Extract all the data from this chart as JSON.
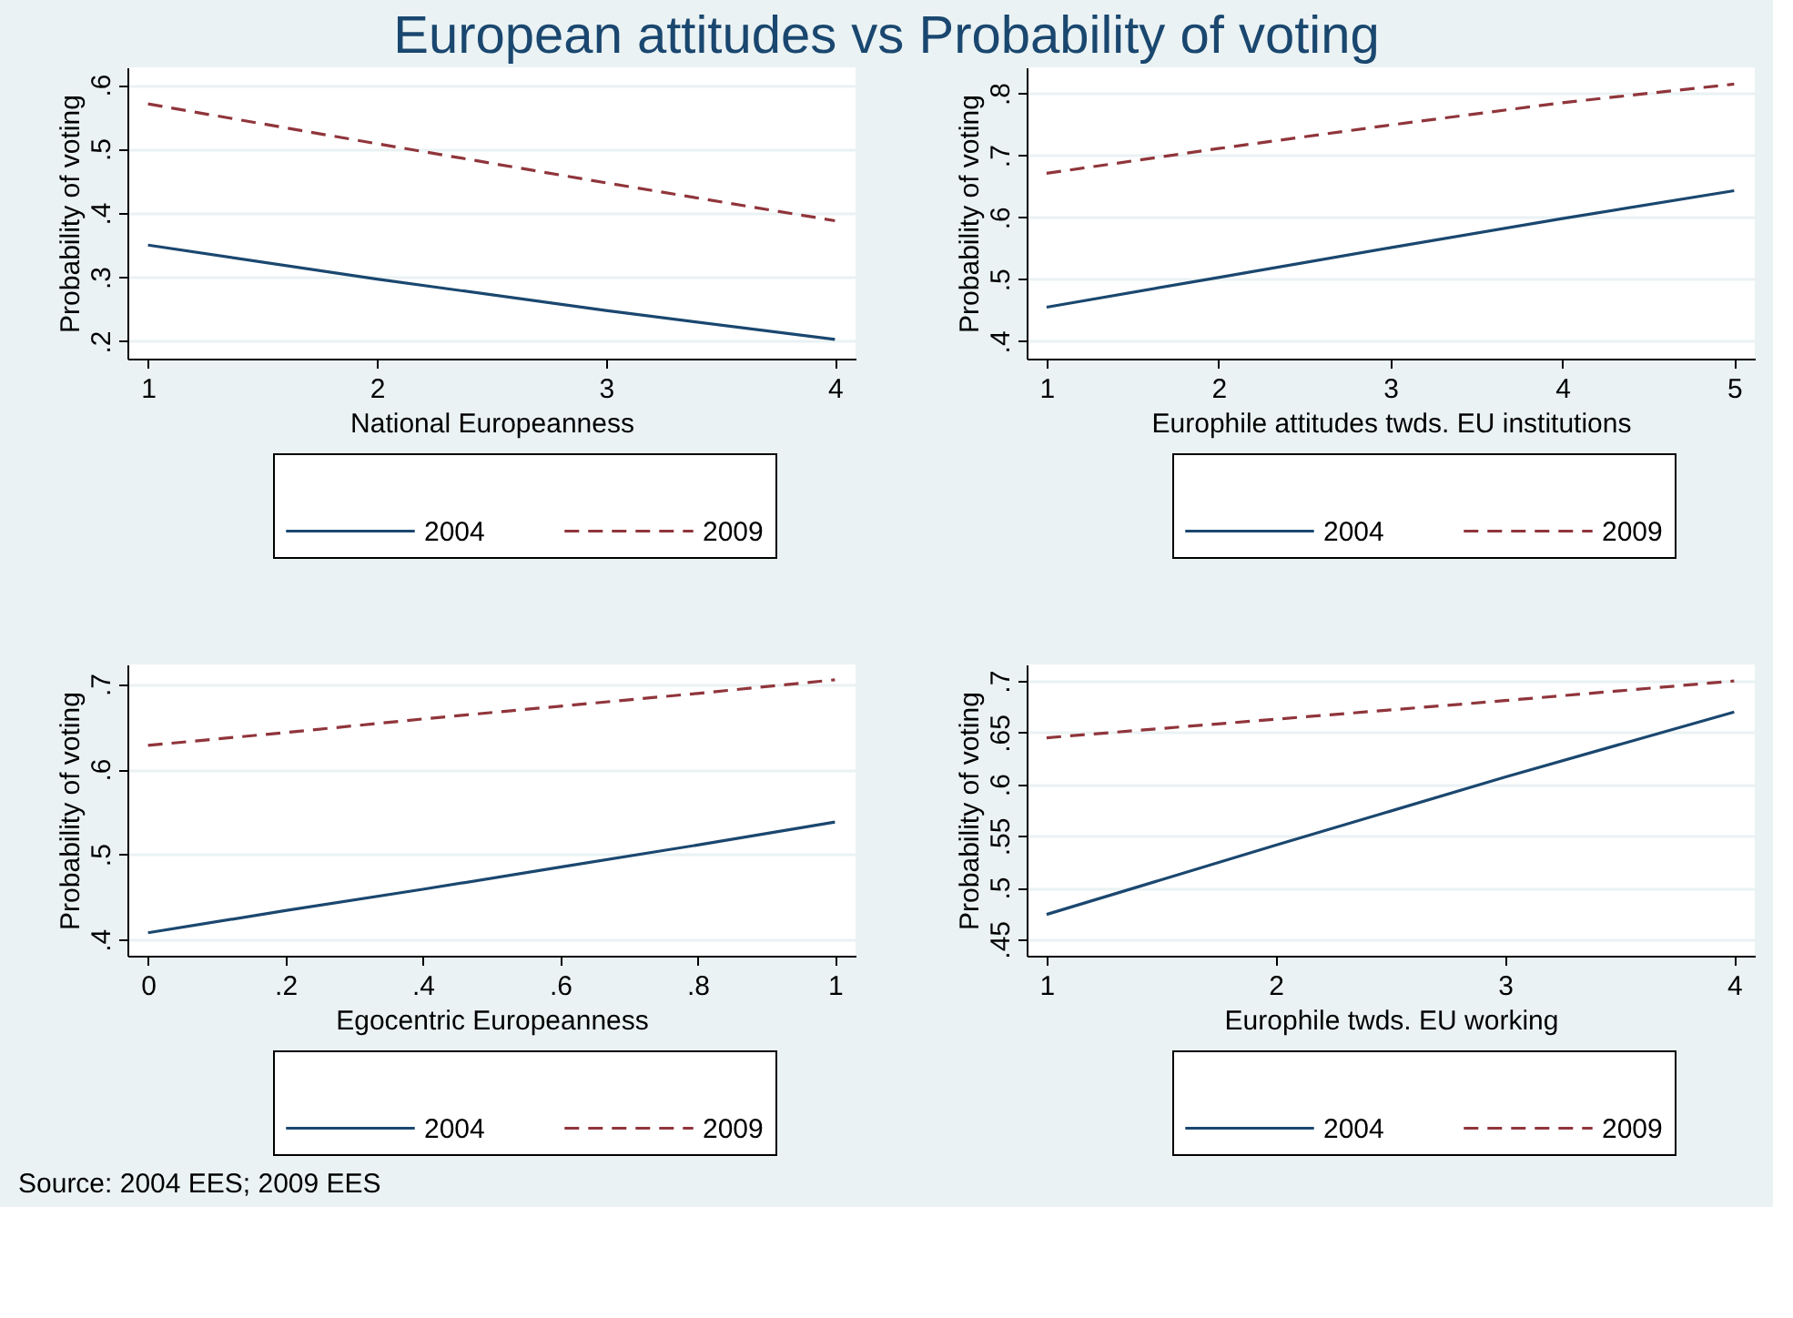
{
  "chart_data": [
    {
      "type": "line",
      "title": "European attitudes vs Probability of voting",
      "xlabel": "National Europeanness",
      "ylabel": "Probability of voting",
      "x": [
        1,
        2,
        3,
        4
      ],
      "series": [
        {
          "name": "2004",
          "color": "#1a476f",
          "line_style": "solid",
          "values": [
            0.35,
            0.297,
            0.248,
            0.203
          ]
        },
        {
          "name": "2009",
          "color": "#90353b",
          "line_style": "dashed",
          "values": [
            0.57,
            0.508,
            0.447,
            0.388
          ]
        }
      ],
      "xlim": [
        0.91,
        4.09
      ],
      "xticks": [
        1,
        2,
        3,
        4
      ],
      "ylim": [
        0.173,
        0.627
      ],
      "yticks": [
        {
          "value": 0.2,
          "label": ".2"
        },
        {
          "value": 0.3,
          "label": ".3"
        },
        {
          "value": 0.4,
          "label": ".4"
        },
        {
          "value": 0.5,
          "label": ".5"
        },
        {
          "value": 0.6,
          "label": ".6"
        }
      ],
      "grid": "y",
      "legend": "bottom",
      "marker": "none"
    },
    {
      "type": "line",
      "xlabel": "Europhile attitudes twds. EU institutions",
      "ylabel": "Probability of voting",
      "x": [
        1,
        2,
        3,
        4,
        5
      ],
      "series": [
        {
          "name": "2004",
          "color": "#1a476f",
          "line_style": "solid",
          "values": [
            0.455,
            0.503,
            0.551,
            0.598,
            0.643
          ]
        },
        {
          "name": "2009",
          "color": "#90353b",
          "line_style": "dashed",
          "values": [
            0.671,
            0.711,
            0.749,
            0.785,
            0.815
          ]
        }
      ],
      "xlim": [
        0.884,
        5.12
      ],
      "xticks": [
        1,
        2,
        3,
        4,
        5
      ],
      "ylim": [
        0.372,
        0.842
      ],
      "yticks": [
        {
          "value": 0.4,
          "label": ".4"
        },
        {
          "value": 0.5,
          "label": ".5"
        },
        {
          "value": 0.6,
          "label": ".6"
        },
        {
          "value": 0.7,
          "label": ".7"
        },
        {
          "value": 0.8,
          "label": ".8"
        }
      ],
      "grid": "y",
      "legend": "bottom",
      "marker": "none"
    },
    {
      "type": "line",
      "xlabel": "Egocentric Europeanness",
      "ylabel": "Probability of voting",
      "x": [
        0,
        0.2,
        0.4,
        0.6,
        0.8,
        1
      ],
      "series": [
        {
          "name": "2004",
          "color": "#1a476f",
          "line_style": "solid",
          "values": [
            0.408,
            0.434,
            0.459,
            0.485,
            0.511,
            0.538
          ]
        },
        {
          "name": "2009",
          "color": "#90353b",
          "line_style": "dashed",
          "values": [
            0.628,
            0.643,
            0.659,
            0.674,
            0.689,
            0.705
          ]
        }
      ],
      "xlim": [
        -0.03,
        1.03
      ],
      "xticks": [
        0,
        {
          "value": 0.2,
          "label": ".2"
        },
        {
          "value": 0.4,
          "label": ".4"
        },
        {
          "value": 0.6,
          "label": ".6"
        },
        {
          "value": 0.8,
          "label": ".8"
        },
        1
      ],
      "ylim": [
        0.381,
        0.723
      ],
      "yticks": [
        {
          "value": 0.4,
          "label": ".4"
        },
        {
          "value": 0.5,
          "label": ".5"
        },
        {
          "value": 0.6,
          "label": ".6"
        },
        {
          "value": 0.7,
          "label": ".7"
        }
      ],
      "grid": "y",
      "legend": "bottom",
      "marker": "none",
      "annotations": [
        "Source: 2004 EES; 2009 EES"
      ]
    },
    {
      "type": "line",
      "xlabel": "Europhile twds. EU working",
      "ylabel": "Probability of voting",
      "x": [
        1,
        2,
        3,
        4
      ],
      "series": [
        {
          "name": "2004",
          "color": "#1a476f",
          "line_style": "solid",
          "values": [
            0.474,
            0.541,
            0.607,
            0.67
          ]
        },
        {
          "name": "2009",
          "color": "#90353b",
          "line_style": "dashed",
          "values": [
            0.645,
            0.663,
            0.681,
            0.7
          ]
        }
      ],
      "xlim": [
        0.913,
        4.09
      ],
      "xticks": [
        1,
        2,
        3,
        4
      ],
      "ylim": [
        0.434,
        0.716
      ],
      "yticks": [
        {
          "value": 0.45,
          "label": ".45"
        },
        {
          "value": 0.5,
          "label": ".5"
        },
        {
          "value": 0.55,
          "label": ".55"
        },
        {
          "value": 0.6,
          "label": ".6"
        },
        {
          "value": 0.65,
          "label": ".65"
        },
        {
          "value": 0.7,
          "label": ".7"
        }
      ],
      "grid": "y",
      "legend": "bottom",
      "marker": "none"
    }
  ]
}
